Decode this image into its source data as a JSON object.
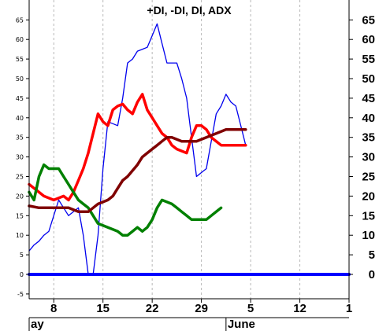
{
  "chart_data": {
    "type": "line",
    "title": "+DI, -DI, DI, ADX",
    "ylim": [
      -7,
      70
    ],
    "y_ticks": [
      -5,
      0,
      5,
      10,
      15,
      20,
      25,
      30,
      35,
      40,
      45,
      50,
      55,
      60,
      65
    ],
    "right_y_ticks": [
      0,
      5,
      10,
      15,
      20,
      25,
      30,
      35,
      40,
      45,
      50,
      55,
      60,
      65
    ],
    "x_range": [
      0,
      65
    ],
    "x_ticks": [
      {
        "x": 5,
        "label": "8"
      },
      {
        "x": 15,
        "label": "15"
      },
      {
        "x": 25,
        "label": "22"
      },
      {
        "x": 35,
        "label": "29"
      },
      {
        "x": 45,
        "label": "5"
      },
      {
        "x": 55,
        "label": "12"
      },
      {
        "x": 65,
        "label": "1"
      }
    ],
    "month_labels": [
      {
        "x": 0,
        "label": "ay"
      },
      {
        "x": 40,
        "label": "June"
      }
    ],
    "grid": true,
    "series": [
      {
        "color": "#0000ee",
        "width": 1.3,
        "x": [
          0,
          1,
          2,
          3,
          4,
          5,
          6,
          7,
          8,
          9,
          10,
          11,
          12,
          13,
          14,
          15,
          16,
          17,
          18,
          19,
          20,
          21,
          22,
          23,
          24,
          25,
          26,
          27,
          28,
          29,
          30,
          31,
          32,
          33,
          34,
          35,
          36,
          37,
          38,
          39,
          40,
          41,
          42,
          43,
          44
        ],
        "y": [
          6,
          7.5,
          8.5,
          10,
          11,
          15,
          19,
          17,
          15,
          16,
          17,
          10,
          0,
          0,
          10,
          27,
          39,
          38.5,
          38,
          45,
          54,
          55,
          57,
          57.5,
          58,
          61,
          64,
          59,
          54,
          54,
          54,
          50,
          45,
          35,
          25,
          26,
          27,
          34,
          41,
          43,
          46,
          44,
          43,
          38,
          33
        ]
      },
      {
        "color": "#ff0000",
        "width": 3.5,
        "x": [
          0,
          1,
          2,
          3,
          4,
          5,
          6,
          7,
          8,
          9,
          10,
          11,
          12,
          13,
          14,
          15,
          16,
          17,
          18,
          19,
          20,
          21,
          22,
          23,
          24,
          25,
          26,
          27,
          28,
          29,
          30,
          31,
          32,
          33,
          34,
          35,
          36,
          37,
          38,
          39,
          40,
          41,
          42,
          43,
          44
        ],
        "y": [
          23,
          22,
          21,
          20,
          19.5,
          19,
          19.5,
          20,
          19,
          21,
          24,
          27,
          31,
          36,
          41,
          39,
          38,
          42,
          43,
          43.5,
          42,
          41,
          44,
          46,
          42,
          40,
          38,
          36,
          35,
          33,
          32,
          31.5,
          31,
          35,
          38,
          38,
          37,
          35,
          34,
          33,
          33,
          33,
          33,
          33,
          33
        ]
      },
      {
        "color": "#008000",
        "width": 3.5,
        "x": [
          0,
          1,
          2,
          3,
          4,
          5,
          6,
          7,
          8,
          9,
          10,
          11,
          12,
          13,
          14,
          15,
          16,
          17,
          18,
          19,
          20,
          21,
          22,
          23,
          24,
          25,
          26,
          27,
          28,
          29,
          30,
          31,
          32,
          33,
          34,
          35,
          36,
          37,
          38,
          39
        ],
        "y": [
          21,
          19,
          25,
          28,
          27,
          27,
          27,
          25,
          23,
          21,
          19,
          18,
          17,
          15,
          13,
          12.5,
          12,
          11.5,
          11,
          10,
          10,
          11,
          12,
          11,
          12,
          14,
          17,
          19,
          18.5,
          18,
          17,
          16,
          15,
          14,
          14,
          14,
          14,
          15,
          16,
          17
        ]
      },
      {
        "color": "#800000",
        "width": 3.5,
        "x": [
          0,
          2,
          4,
          6,
          8,
          9,
          10,
          11,
          12,
          13,
          14,
          15,
          16,
          17,
          18,
          19,
          20,
          21,
          22,
          23,
          24,
          25,
          26,
          27,
          28,
          29,
          30,
          31,
          32,
          33,
          34,
          35,
          36,
          37,
          38,
          39,
          40,
          41,
          42,
          43,
          44
        ],
        "y": [
          17.5,
          17,
          17,
          17,
          17,
          16.5,
          16,
          16,
          16,
          17,
          18,
          18.5,
          19,
          20,
          22,
          24,
          25,
          26.5,
          28,
          30,
          31,
          32,
          33,
          34,
          35,
          35,
          34.5,
          34,
          34,
          34,
          34,
          34.5,
          35,
          35.5,
          36,
          36.5,
          37,
          37,
          37,
          37,
          37
        ]
      },
      {
        "color": "#0000ff",
        "width": 4,
        "x": [
          0,
          65
        ],
        "y": [
          0,
          0
        ]
      }
    ]
  }
}
